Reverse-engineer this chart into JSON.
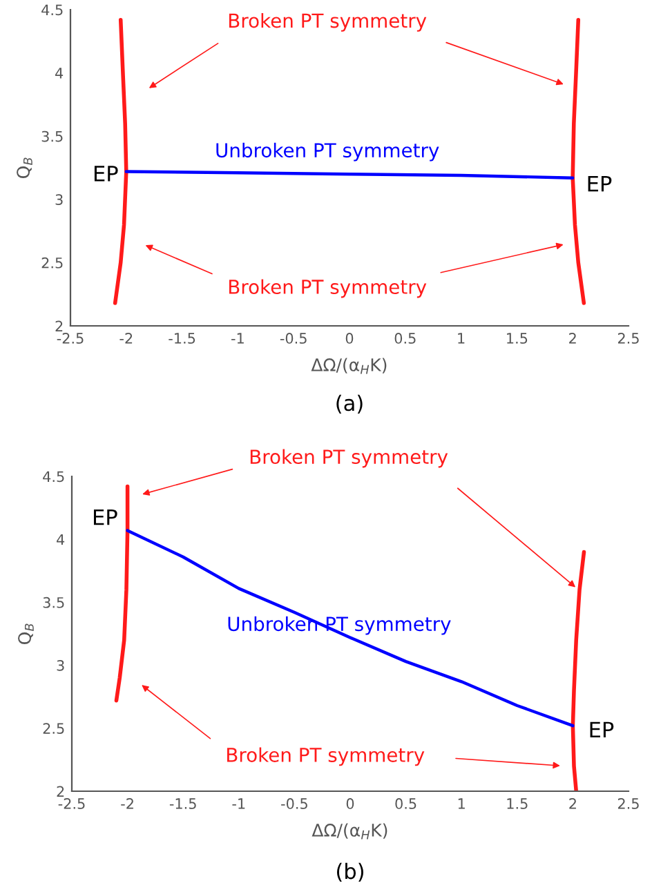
{
  "chart_data": [
    {
      "type": "line",
      "xlabel": "ΔΩ/(α$_{H}$K)",
      "ylabel": "Q$_{B}$",
      "xlim": [
        -2.5,
        2.5
      ],
      "ylim": [
        2,
        4.5
      ],
      "xticks": [
        -2.5,
        -2,
        -1.5,
        -1,
        -0.5,
        0,
        0.5,
        1,
        1.5,
        2,
        2.5
      ],
      "yticks": [
        2,
        2.5,
        3,
        3.5,
        4,
        4.5
      ],
      "series": [
        {
          "color": "#ff1a1a",
          "x": [
            -2.05,
            -2.03,
            -2.01,
            -2.0,
            -2.02,
            -2.05,
            -2.1
          ],
          "values": [
            4.42,
            4.0,
            3.6,
            3.22,
            2.8,
            2.5,
            2.18
          ]
        },
        {
          "color": "#ff1a1a",
          "x": [
            2.05,
            2.03,
            2.01,
            2.0,
            2.02,
            2.05,
            2.1
          ],
          "values": [
            4.42,
            4.0,
            3.6,
            3.17,
            2.8,
            2.5,
            2.18
          ]
        },
        {
          "color": "#0000ff",
          "x": [
            -2,
            -1,
            0,
            1,
            2
          ],
          "values": [
            3.22,
            3.21,
            3.2,
            3.19,
            3.17
          ]
        }
      ],
      "annotations": [
        {
          "text": "Broken PT symmetry",
          "x": 1.95,
          "y": 3.9
        },
        "Broken PT symmetry",
        "Unbroken PT symmetry",
        {
          "text": "EP",
          "x": -2,
          "y": 3.22
        },
        {
          "text": "EP",
          "x": 2,
          "y": 3.17
        },
        "(a)"
      ]
    },
    {
      "type": "line",
      "xlabel": "ΔΩ/(α$_{H}$K)",
      "ylabel": "Q$_{B}$",
      "xlim": [
        -2.5,
        2.5
      ],
      "ylim": [
        2,
        4.5
      ],
      "xticks": [
        -2.5,
        -2,
        -1.5,
        -1,
        -0.5,
        0,
        0.5,
        1,
        1.5,
        2,
        2.5
      ],
      "yticks": [
        2,
        2.5,
        3,
        3.5,
        4,
        4.5
      ],
      "series": [
        {
          "color": "#ff1a1a",
          "x": [
            -2.0,
            -2.0,
            -2.01,
            -2.03,
            -2.07,
            -2.1
          ],
          "values": [
            4.42,
            4.07,
            3.6,
            3.2,
            2.9,
            2.72
          ]
        },
        {
          "color": "#ff1a1a",
          "x": [
            2.1,
            2.06,
            2.03,
            2.01,
            2.0,
            2.01,
            2.03
          ],
          "values": [
            3.9,
            3.6,
            3.2,
            2.8,
            2.52,
            2.2,
            2.0
          ]
        },
        {
          "color": "#0000ff",
          "x": [
            -2,
            -1.5,
            -1,
            -0.5,
            0,
            0.5,
            1,
            1.5,
            2
          ],
          "values": [
            4.07,
            3.86,
            3.61,
            3.42,
            3.22,
            3.03,
            2.87,
            2.68,
            2.52
          ]
        }
      ],
      "annotations": [
        {
          "text": "Broken PT symmetry",
          "x": 2.05,
          "y": 3.6
        },
        "Broken PT symmetry",
        "Unbroken PT symmetry",
        {
          "text": "EP",
          "x": -2,
          "y": 4.07
        },
        {
          "text": "EP",
          "x": 2,
          "y": 2.52
        },
        "(b)"
      ]
    }
  ]
}
